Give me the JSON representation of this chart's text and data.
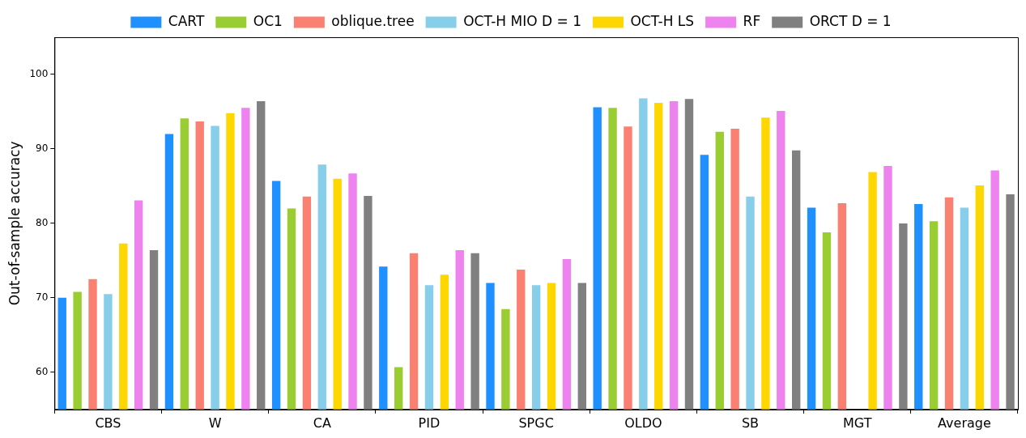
{
  "chart_data": {
    "type": "bar",
    "ylabel": "Out-of-sample accuracy",
    "categories": [
      "CBS",
      "W",
      "CA",
      "PID",
      "SPGC",
      "OLDO",
      "SB",
      "MGT",
      "Average"
    ],
    "series": [
      {
        "name": "CART",
        "color": "#1e90ff",
        "values": [
          70.0,
          92.0,
          85.7,
          74.2,
          72.0,
          95.6,
          89.2,
          82.1,
          82.6
        ]
      },
      {
        "name": "OC1",
        "color": "#9acd32",
        "values": [
          70.8,
          94.1,
          82.0,
          60.7,
          68.5,
          95.5,
          92.3,
          78.8,
          80.3
        ]
      },
      {
        "name": "oblique.tree",
        "color": "#fa8072",
        "values": [
          72.5,
          93.7,
          83.6,
          76.0,
          73.8,
          93.0,
          92.7,
          82.7,
          83.5
        ]
      },
      {
        "name": "OCT-H MIO D = 1",
        "color": "#87ceeb",
        "values": [
          70.5,
          93.1,
          87.9,
          71.7,
          71.7,
          96.8,
          83.6,
          null,
          82.1
        ]
      },
      {
        "name": "OCT-H LS",
        "color": "#ffd700",
        "values": [
          77.3,
          94.8,
          86.0,
          73.1,
          72.0,
          96.2,
          94.2,
          86.9,
          85.1
        ]
      },
      {
        "name": "RF",
        "color": "#ee82ee",
        "values": [
          83.1,
          95.5,
          86.7,
          76.4,
          75.2,
          96.4,
          95.1,
          87.7,
          87.1
        ]
      },
      {
        "name": "ORCT D = 1",
        "color": "#808080",
        "values": [
          76.4,
          96.4,
          83.7,
          76.0,
          72.0,
          96.7,
          89.8,
          80.0,
          83.9
        ]
      }
    ],
    "ylim": [
      55,
      105
    ],
    "yticks": [
      60,
      70,
      80,
      90,
      100
    ],
    "grid": false,
    "legend": "top"
  }
}
